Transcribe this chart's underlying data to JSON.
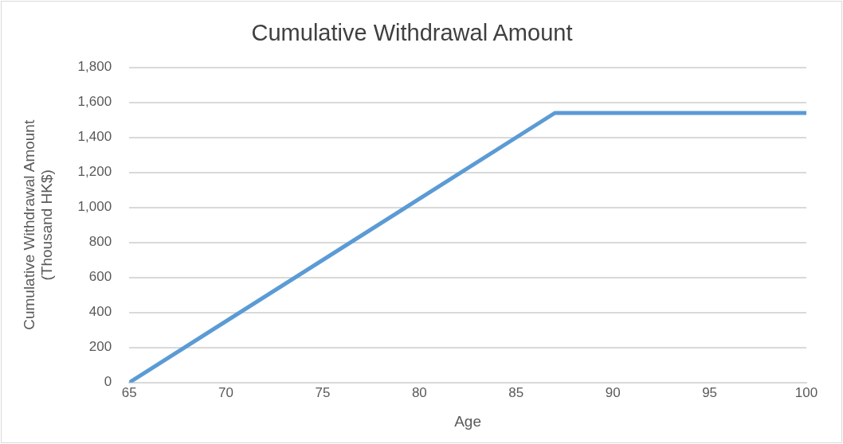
{
  "chart_data": {
    "type": "line",
    "title": "Cumulative Withdrawal Amount",
    "xlabel": "Age",
    "ylabel": "Cumulative Withdrawal Amount\n(Thousand HK$)",
    "x": [
      65,
      87,
      100
    ],
    "series": [
      {
        "color": "#5b9bd5",
        "values": [
          0,
          1540,
          1540
        ]
      }
    ],
    "xlim": [
      65,
      100
    ],
    "xticks": [
      65,
      70,
      75,
      80,
      85,
      90,
      95,
      100
    ],
    "ylim": [
      0,
      1800
    ],
    "yticks": [
      0,
      200,
      400,
      600,
      800,
      {
        "value": 1000,
        "label": "1,000"
      },
      {
        "value": 1200,
        "label": "1,200"
      },
      {
        "value": 1400,
        "label": "1,400"
      },
      {
        "value": 1600,
        "label": "1,600"
      },
      {
        "value": 1800,
        "label": "1,800"
      }
    ],
    "grid": "y",
    "legend": false,
    "marker": "none",
    "line_style": "solid"
  }
}
